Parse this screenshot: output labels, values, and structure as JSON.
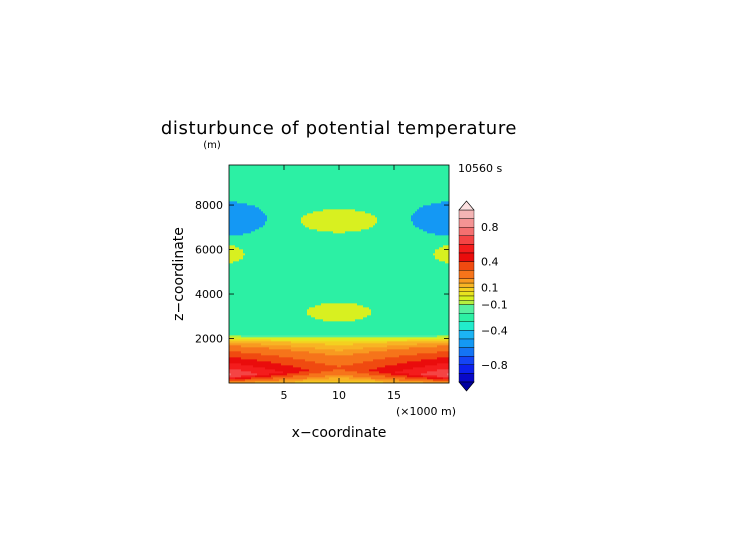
{
  "chart_data": {
    "type": "heatmap",
    "title": "disturbunce of potential temperature",
    "ylabel": "z−coordinate",
    "yunit": "(m)",
    "xlabel": "x−coordinate",
    "xunit": "(×1000 m)",
    "time_label": "10560 s",
    "xlim": [
      0,
      20
    ],
    "ylim": [
      0,
      9800
    ],
    "xticks": [
      5,
      10,
      15
    ],
    "yticks": [
      2000,
      4000,
      6000,
      8000
    ],
    "xtick_labels": [
      "5",
      "10",
      "15"
    ],
    "ytick_labels": [
      "2000",
      "4000",
      "6000",
      "8000"
    ],
    "background_level": -0.25,
    "features": [
      {
        "name": "upper-left cool lobe",
        "cx": 0.0,
        "cz": 7400,
        "rx": 3.4,
        "rz": 750,
        "value": -0.6
      },
      {
        "name": "upper-right cool lobe",
        "cx": 20.0,
        "cz": 7400,
        "rx": 3.4,
        "rz": 750,
        "value": -0.6
      },
      {
        "name": "upper center warm lobe",
        "cx": 10.0,
        "cz": 7300,
        "rx": 3.5,
        "rz": 520,
        "value": -0.05
      },
      {
        "name": "left mid warm lobe",
        "cx": 0.0,
        "cz": 5800,
        "rx": 1.4,
        "rz": 380,
        "value": -0.05
      },
      {
        "name": "right mid warm lobe",
        "cx": 20.0,
        "cz": 5800,
        "rx": 1.4,
        "rz": 380,
        "value": -0.05
      },
      {
        "name": "center mid warm lobe",
        "cx": 10.0,
        "cz": 3200,
        "rx": 2.9,
        "rz": 420,
        "value": -0.05
      }
    ],
    "bottom_layer": {
      "z_bottom": 0,
      "z_top": 2200,
      "edge_max": 0.7,
      "center_max": 0.3
    },
    "colorbar": {
      "labels": [
        {
          "value": 0.8,
          "text": "0.8"
        },
        {
          "value": 0.4,
          "text": "0.4"
        },
        {
          "value": 0.1,
          "text": "0.1"
        },
        {
          "value": -0.1,
          "text": "−0.1"
        },
        {
          "value": -0.4,
          "text": "−0.4"
        },
        {
          "value": -0.8,
          "text": "−0.8"
        }
      ],
      "levels": [
        {
          "lo": 0.9,
          "hi": 1.0,
          "color": "#f4b4b4"
        },
        {
          "lo": 0.8,
          "hi": 0.9,
          "color": "#f49494"
        },
        {
          "lo": 0.7,
          "hi": 0.8,
          "color": "#f47070"
        },
        {
          "lo": 0.6,
          "hi": 0.7,
          "color": "#f44444"
        },
        {
          "lo": 0.5,
          "hi": 0.6,
          "color": "#f41c1c"
        },
        {
          "lo": 0.4,
          "hi": 0.5,
          "color": "#ea0c0c"
        },
        {
          "lo": 0.3,
          "hi": 0.4,
          "color": "#f04a10"
        },
        {
          "lo": 0.2,
          "hi": 0.3,
          "color": "#f6741a"
        },
        {
          "lo": 0.15,
          "hi": 0.2,
          "color": "#f89a20"
        },
        {
          "lo": 0.1,
          "hi": 0.15,
          "color": "#f8b424"
        },
        {
          "lo": 0.05,
          "hi": 0.1,
          "color": "#f4d020"
        },
        {
          "lo": 0.0,
          "hi": 0.05,
          "color": "#e8e420"
        },
        {
          "lo": -0.05,
          "hi": 0.0,
          "color": "#d8f020"
        },
        {
          "lo": -0.1,
          "hi": -0.05,
          "color": "#b4f040"
        },
        {
          "lo": -0.2,
          "hi": -0.1,
          "color": "#54f0a0"
        },
        {
          "lo": -0.3,
          "hi": -0.2,
          "color": "#2cf0a4"
        },
        {
          "lo": -0.4,
          "hi": -0.3,
          "color": "#22eccc"
        },
        {
          "lo": -0.5,
          "hi": -0.4,
          "color": "#1cb4f4"
        },
        {
          "lo": -0.6,
          "hi": -0.5,
          "color": "#1498f4"
        },
        {
          "lo": -0.7,
          "hi": -0.6,
          "color": "#1474f4"
        },
        {
          "lo": -0.8,
          "hi": -0.7,
          "color": "#1444f4"
        },
        {
          "lo": -0.9,
          "hi": -0.8,
          "color": "#0c20ec"
        },
        {
          "lo": -1.0,
          "hi": -0.9,
          "color": "#0808c8"
        }
      ],
      "over_color": "#fce0e0",
      "under_color": "#0000a0"
    }
  }
}
